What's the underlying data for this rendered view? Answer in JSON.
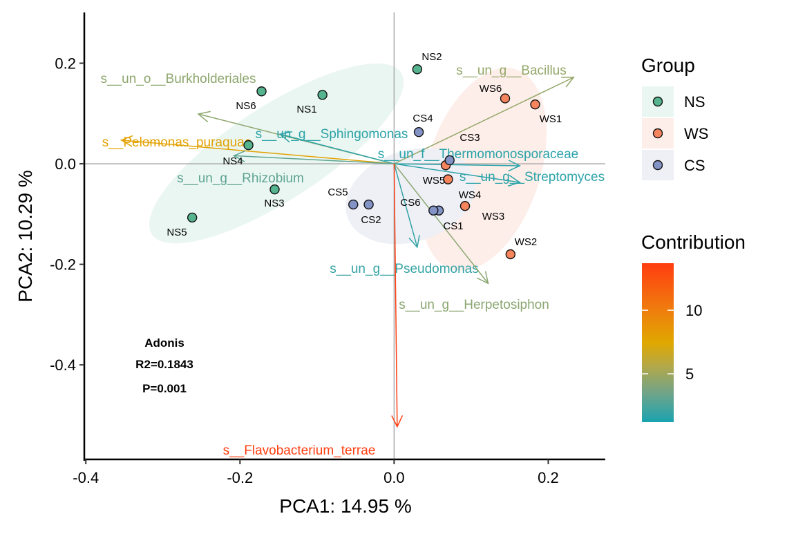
{
  "chart_data": {
    "type": "scatter",
    "title": "",
    "xlabel": "PCA1:  14.95 %",
    "ylabel": "PCA2:  10.29 %",
    "xlim": [
      -0.402,
      0.274
    ],
    "ylim": [
      -0.588,
      0.301
    ],
    "x_ticks": [
      -0.4,
      -0.2,
      0.0,
      0.2
    ],
    "x_tick_labels": [
      "-0.4",
      "-0.2",
      "0.0",
      "0.2"
    ],
    "y_ticks": [
      -0.4,
      -0.2,
      0.0,
      0.2
    ],
    "y_tick_labels": [
      "-0.4",
      "-0.2",
      "0.0",
      "0.2"
    ],
    "grid": false,
    "reference_lines": {
      "x": 0,
      "y": 0,
      "color": "#aaaaaa"
    },
    "groups": [
      {
        "name": "NS",
        "color": "#55B38E",
        "ellipse_fill": "#EAF6F1"
      },
      {
        "name": "WS",
        "color": "#F6845C",
        "ellipse_fill": "#FDEEE9"
      },
      {
        "name": "CS",
        "color": "#8393C6",
        "ellipse_fill": "#EEF0F6"
      }
    ],
    "points": [
      {
        "label": "NS1",
        "group": "NS",
        "x": -0.093,
        "y": 0.137
      },
      {
        "label": "NS2",
        "group": "NS",
        "x": 0.03,
        "y": 0.188
      },
      {
        "label": "NS3",
        "group": "NS",
        "x": -0.155,
        "y": -0.051
      },
      {
        "label": "NS4",
        "group": "NS",
        "x": -0.189,
        "y": 0.037
      },
      {
        "label": "NS5",
        "group": "NS",
        "x": -0.262,
        "y": -0.107
      },
      {
        "label": "NS6",
        "group": "NS",
        "x": -0.172,
        "y": 0.144
      },
      {
        "label": "WS1",
        "group": "WS",
        "x": 0.183,
        "y": 0.118
      },
      {
        "label": "WS2",
        "group": "WS",
        "x": 0.151,
        "y": -0.18
      },
      {
        "label": "WS3",
        "group": "WS",
        "x": 0.092,
        "y": -0.084
      },
      {
        "label": "WS4",
        "group": "WS",
        "x": 0.067,
        "y": -0.003
      },
      {
        "label": "WS5",
        "group": "WS",
        "x": 0.07,
        "y": -0.031
      },
      {
        "label": "WS6",
        "group": "WS",
        "x": 0.144,
        "y": 0.13
      },
      {
        "label": "CS1",
        "group": "CS",
        "x": 0.058,
        "y": -0.093
      },
      {
        "label": "CS2",
        "group": "CS",
        "x": -0.033,
        "y": -0.081
      },
      {
        "label": "CS3",
        "group": "CS",
        "x": 0.072,
        "y": 0.007
      },
      {
        "label": "CS4",
        "group": "CS",
        "x": 0.032,
        "y": 0.063
      },
      {
        "label": "CS5",
        "group": "CS",
        "x": -0.053,
        "y": -0.081
      },
      {
        "label": "CS6",
        "group": "CS",
        "x": 0.051,
        "y": -0.093
      }
    ],
    "loadings": [
      {
        "label": "s__un_g__Bacillus",
        "x": 0.233,
        "y": 0.172,
        "contribution": 4.6
      },
      {
        "label": "s__un_o__Burkholderiales",
        "x": -0.254,
        "y": 0.099,
        "contribution": 4.4
      },
      {
        "label": "s__un_g__Sphingomonas",
        "x": -0.148,
        "y": 0.059,
        "contribution": 1.7
      },
      {
        "label": "s__Pelomonas_puraquae",
        "x": -0.354,
        "y": 0.047,
        "contribution": 7.8
      },
      {
        "label": "s__un_g__Rhizobium",
        "x": -0.208,
        "y": 0.016,
        "contribution": 3.0
      },
      {
        "label": "s__un_f__Thermomonosporaceae",
        "x": 0.163,
        "y": -0.004,
        "contribution": 1.6
      },
      {
        "label": "s__un_g__Streptomyces",
        "x": 0.163,
        "y": -0.037,
        "contribution": 1.7
      },
      {
        "label": "s__un_g__Pseudomonas",
        "x": 0.03,
        "y": -0.166,
        "contribution": 1.9
      },
      {
        "label": "s__un_g__Herpetosiphon",
        "x": 0.122,
        "y": -0.238,
        "contribution": 4.3
      },
      {
        "label": "s__Flavobacterium_terrae",
        "x": 0.004,
        "y": -0.523,
        "contribution": 13.7
      }
    ],
    "legend": {
      "group_title": "Group",
      "contribution_title": "Contribution",
      "contribution_range": [
        1.2,
        13.7
      ],
      "contribution_ticks": [
        5,
        10
      ],
      "contribution_tick_labels": [
        "5",
        "10"
      ],
      "gradient": [
        "#1AA3B0",
        "#8AA870",
        "#E0A800",
        "#FF3D10"
      ],
      "placement": "right"
    },
    "annotation": {
      "title": "Adonis",
      "r2": "R2=0.1843",
      "p": "P=0.001"
    }
  }
}
